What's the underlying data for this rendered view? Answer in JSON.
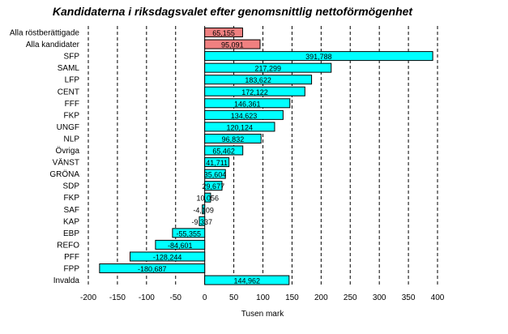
{
  "chart_data": {
    "type": "bar",
    "orientation": "horizontal",
    "title": "Kandidaterna i riksdagsvalet efter genomsnittlig nettoförmögenhet",
    "xlabel": "Tusen mark",
    "ylabel": "",
    "xlim": [
      -200,
      400
    ],
    "xticks": [
      -200,
      -150,
      -100,
      -50,
      0,
      50,
      100,
      150,
      200,
      250,
      300,
      350,
      400
    ],
    "grid": "vertical-dashed",
    "colors": {
      "highlight": "#f08080",
      "default": "#00ffff",
      "border": "#000000"
    },
    "categories": [
      "Alla röstberättigade",
      "Alla kandidater",
      "SFP",
      "SAML",
      "LFP",
      "CENT",
      "FFF",
      "FKP",
      "UNGF",
      "NLP",
      "Övriga",
      "VÄNST",
      "GRÖNA",
      "SDP",
      "FKP",
      "SAF",
      "KAP",
      "EBP",
      "REFO",
      "PFF",
      "FPP",
      "Invalda"
    ],
    "values": [
      65.155,
      95.091,
      391.788,
      217.299,
      183.622,
      172.122,
      146.361,
      134.623,
      120.124,
      96.832,
      65.462,
      41.711,
      35.604,
      29.677,
      10.056,
      -4.109,
      -9.337,
      -55.355,
      -84.601,
      -128.244,
      -180.687,
      144.962
    ],
    "labels": [
      "65,155",
      "95,091",
      "391,788",
      "217,299",
      "183,622",
      "172,122",
      "146,361",
      "134,623",
      "120,124",
      "96,832",
      "65,462",
      "41,711",
      "35,604",
      "29,677",
      "10,056",
      "-4,109",
      "-9,337",
      "-55,355",
      "-84,601",
      "-128,244",
      "-180,687",
      "144,962"
    ],
    "highlighted": [
      0,
      1
    ]
  }
}
